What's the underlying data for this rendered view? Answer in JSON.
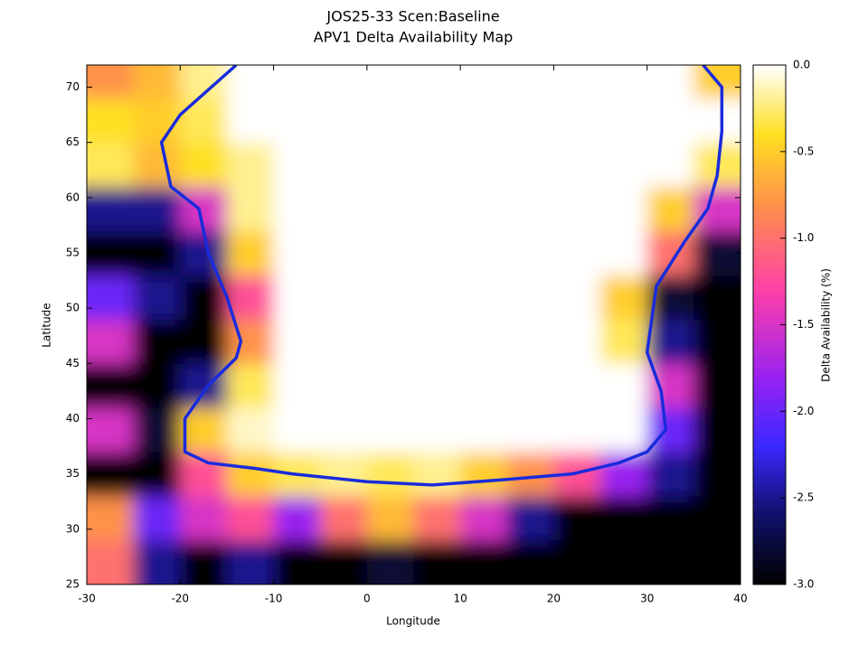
{
  "chart_data": {
    "type": "heatmap",
    "title": "JOS25-33 Scen:Baseline",
    "subtitle": "APV1 Delta Availability Map",
    "x_label": "Longitude",
    "y_label": "Latitude",
    "colorbar_label": "Delta Availability (%)",
    "xlim": [
      -30,
      40
    ],
    "ylim": [
      25,
      72
    ],
    "xticks": [
      -30,
      -20,
      -10,
      0,
      10,
      20,
      30,
      40
    ],
    "yticks": [
      25,
      30,
      35,
      40,
      45,
      50,
      55,
      60,
      65,
      70
    ],
    "zlim": [
      -3,
      0
    ],
    "zticks": [
      {
        "value": 0,
        "label": "0.0"
      },
      -0.5,
      {
        "value": -1,
        "label": "-1.0"
      },
      -1.5,
      {
        "value": -2,
        "label": "-2.0"
      },
      -2.5,
      {
        "value": -3,
        "label": "-3.0"
      }
    ],
    "colormap": [
      {
        "value": -3,
        "color": "#000000"
      },
      {
        "value": -2.6,
        "color": "#10106a"
      },
      {
        "value": -2.2,
        "color": "#3a28ff"
      },
      {
        "value": -1.8,
        "color": "#9a22f0"
      },
      {
        "value": -1.3,
        "color": "#ff40a8"
      },
      {
        "value": -0.8,
        "color": "#ff9248"
      },
      {
        "value": -0.4,
        "color": "#ffe020"
      },
      {
        "value": 0,
        "color": "#ffffff"
      }
    ],
    "x_edges": [
      -30,
      -25,
      -20,
      -15,
      -10,
      -5,
      0,
      5,
      10,
      15,
      20,
      25,
      30,
      35,
      40
    ],
    "y_edges": [
      25,
      29,
      33,
      37,
      41,
      45,
      49,
      53,
      57,
      61,
      65,
      69,
      72
    ],
    "z": [
      [
        -1,
        -2.5,
        -3,
        -2.5,
        -3,
        -3,
        -2.8,
        -3,
        -3,
        -3,
        -3,
        -3,
        -3,
        -3
      ],
      [
        -0.8,
        -2,
        -1.5,
        -1.2,
        -1.8,
        -1,
        -0.6,
        -1,
        -1.5,
        -2.5,
        -3,
        -3,
        -3,
        -3
      ],
      [
        -3,
        -3,
        -1.2,
        -0.5,
        -0.3,
        -0.2,
        -0.3,
        -0.2,
        -0.5,
        -0.8,
        -1.2,
        -1.8,
        -2.5,
        -3
      ],
      [
        -1.5,
        -2.8,
        -0.5,
        -0.1,
        0,
        0,
        0,
        0,
        0,
        0,
        0,
        0,
        -2,
        -3
      ],
      [
        -3,
        -3,
        -2.5,
        -0.3,
        0,
        0,
        0,
        0,
        0,
        0,
        0,
        0,
        -1.5,
        -3
      ],
      [
        -1.5,
        -3,
        -3,
        -0.8,
        0,
        0,
        0,
        0,
        0,
        0,
        0,
        -0.3,
        -2.5,
        -3
      ],
      [
        -2,
        -2.5,
        -3,
        -1.2,
        0,
        0,
        0,
        0,
        0,
        0,
        0,
        -0.5,
        -2.8,
        -3
      ],
      [
        -3,
        -3,
        -2.5,
        -0.5,
        0,
        0,
        0,
        0,
        0,
        0,
        0,
        0,
        -1,
        -2.8
      ],
      [
        -2.5,
        -2.5,
        -1.5,
        -0.2,
        0,
        0,
        0,
        0,
        0,
        0,
        0,
        0,
        -0.5,
        -1.5
      ],
      [
        -0.3,
        -0.6,
        -0.4,
        -0.2,
        0,
        0,
        0,
        0,
        0,
        0,
        0,
        0,
        0,
        -0.3
      ],
      [
        -0.4,
        -0.5,
        -0.3,
        0,
        0,
        0,
        0,
        0,
        0,
        0,
        0,
        0,
        0,
        0
      ],
      [
        -0.8,
        -0.6,
        -0.2,
        0,
        0,
        0,
        0,
        0,
        0,
        0,
        0,
        0,
        0,
        -0.5
      ]
    ],
    "contour": {
      "color": "#1a2bdc",
      "lon": [
        -14,
        -20,
        -22,
        -21,
        -18,
        -17,
        -15,
        -13.5,
        -14,
        -17,
        -19.5,
        -19.5,
        -17,
        -14,
        -12,
        -8,
        0,
        7,
        15,
        22,
        27,
        30,
        32,
        31.5,
        30,
        31,
        34,
        36.5,
        37.5,
        38,
        38,
        36
      ],
      "lat": [
        72,
        67.5,
        65,
        61,
        59,
        55,
        51,
        47,
        45.5,
        43,
        40,
        37,
        36,
        35.7,
        35.5,
        35,
        34.3,
        34,
        34.5,
        35,
        36,
        37,
        39,
        42.5,
        46,
        52,
        56,
        59,
        62,
        66,
        70,
        72
      ]
    }
  }
}
